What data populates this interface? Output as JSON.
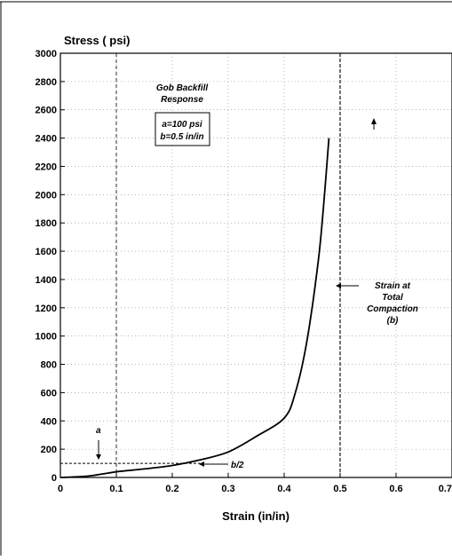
{
  "chart_data": {
    "type": "line",
    "ylabel": "Stress ( psi)",
    "xlabel": "Strain (in/in)",
    "xlim": [
      0,
      0.7
    ],
    "ylim": [
      0,
      3000
    ],
    "x_ticks": [
      "0",
      "0.1",
      "0.2",
      "0.3",
      "0.4",
      "0.5",
      "0.6",
      "0.7"
    ],
    "y_ticks": [
      "0",
      "200",
      "400",
      "600",
      "800",
      "1000",
      "1200",
      "1400",
      "1600",
      "1800",
      "2000",
      "2200",
      "2400",
      "2600",
      "2800",
      "3000"
    ],
    "grid": true,
    "series": [
      {
        "x": [
          0,
          0.05,
          0.1,
          0.15,
          0.2,
          0.25,
          0.3,
          0.35,
          0.4,
          0.42,
          0.44,
          0.46,
          0.47,
          0.48
        ],
        "y": [
          0,
          10,
          40,
          60,
          85,
          125,
          180,
          290,
          420,
          600,
          950,
          1500,
          1900,
          2400
        ]
      }
    ],
    "annotations": {
      "response_title": [
        "Gob Backfill",
        "Response"
      ],
      "params_box": [
        "a=100 psi",
        "b=0.5 in/in"
      ],
      "a_label": "a",
      "b_half_label": "b/2",
      "compaction_label": [
        "Strain at",
        "Total",
        "Compaction",
        "(b)"
      ]
    },
    "reference_lines": {
      "total_compaction_strain": 0.5,
      "a_stress": 100,
      "b_half_strain": 0.25
    }
  }
}
